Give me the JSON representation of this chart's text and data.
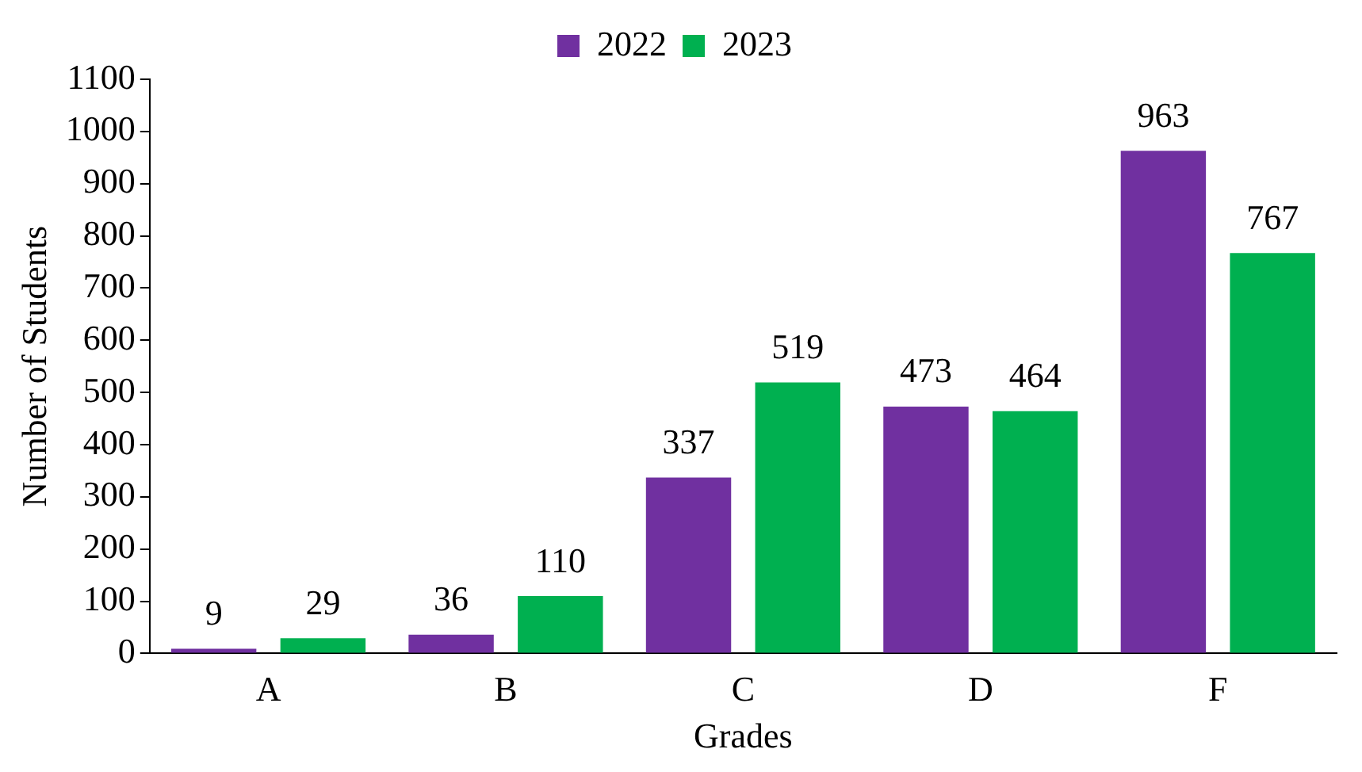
{
  "chart_data": {
    "type": "bar",
    "xlabel": "Grades",
    "ylabel": "Number of Students",
    "categories": [
      "A",
      "B",
      "C",
      "D",
      "F"
    ],
    "series": [
      {
        "name": "2022",
        "color": "#7030a0",
        "values": [
          9,
          36,
          337,
          473,
          963
        ]
      },
      {
        "name": "2023",
        "color": "#00b050",
        "values": [
          29,
          110,
          519,
          464,
          767
        ]
      }
    ],
    "ylim": [
      0,
      1100
    ],
    "yticks": [
      0,
      100,
      200,
      300,
      400,
      500,
      600,
      700,
      800,
      900,
      1000,
      1100
    ],
    "grid": false,
    "legend": "top",
    "data_labels": true
  }
}
